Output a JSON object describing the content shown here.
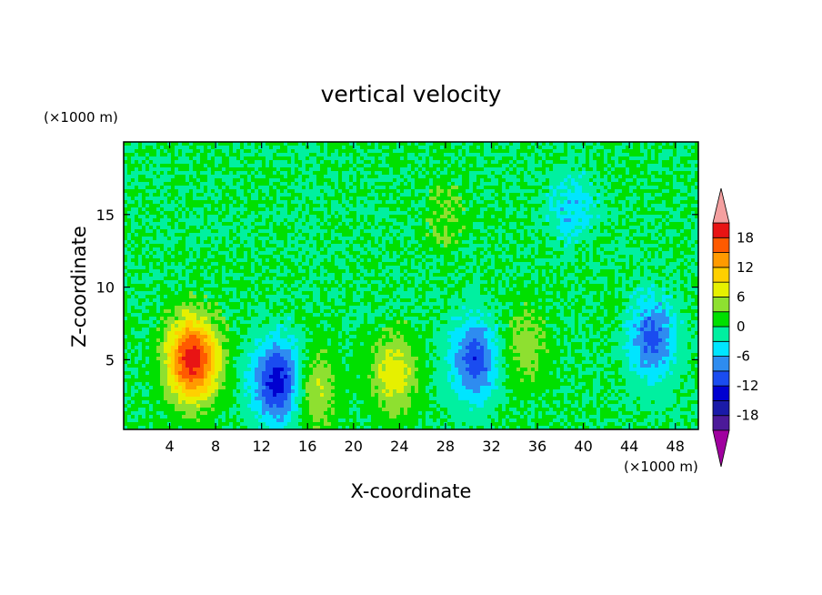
{
  "chart_data": {
    "type": "heatmap",
    "title": "vertical velocity",
    "xlabel": "X-coordinate",
    "ylabel": "Z-coordinate",
    "x_unit": "(×1000 m)",
    "y_unit": "(×1000 m)",
    "xlim": [
      0,
      50
    ],
    "ylim": [
      0.2,
      20
    ],
    "x_ticks": [
      4,
      8,
      12,
      16,
      20,
      24,
      28,
      32,
      36,
      40,
      44,
      48
    ],
    "y_ticks": [
      5,
      10,
      15
    ],
    "colorbar": {
      "levels": [
        -21,
        -18,
        -15,
        -12,
        -9,
        -6,
        -3,
        0,
        3,
        6,
        9,
        12,
        15,
        18,
        21
      ],
      "tick_labels": [
        18,
        12,
        6,
        0,
        -6,
        -12,
        -18
      ],
      "colors": [
        "#a0009f",
        "#4c1a99",
        "#1a1aa8",
        "#0000d0",
        "#1a4cf0",
        "#2e8cf0",
        "#00e5ff",
        "#00f0a0",
        "#00e000",
        "#8ee030",
        "#e6f000",
        "#ffd000",
        "#ff9a00",
        "#ff5a00",
        "#e81414",
        "#f4a0a0"
      ]
    },
    "features": [
      {
        "x": 6,
        "z": 5,
        "w_max": 20,
        "sign": "positive"
      },
      {
        "x": 13.5,
        "z": 3.5,
        "w_min": -14,
        "sign": "negative"
      },
      {
        "x": 16.5,
        "z": 3,
        "w_max": 7,
        "sign": "positive"
      },
      {
        "x": 23.5,
        "z": 4,
        "w_max": 8,
        "sign": "positive"
      },
      {
        "x": 30.5,
        "z": 5,
        "w_min": -11,
        "sign": "negative"
      },
      {
        "x": 35,
        "z": 6,
        "w_max": 5,
        "sign": "positive"
      },
      {
        "x": 46,
        "z": 6.5,
        "w_min": -10,
        "sign": "negative"
      },
      {
        "x": 28,
        "z": 15,
        "w_max": 3,
        "sign": "positive"
      },
      {
        "x": 39,
        "z": 15.5,
        "w_min": -5,
        "sign": "negative"
      }
    ]
  }
}
